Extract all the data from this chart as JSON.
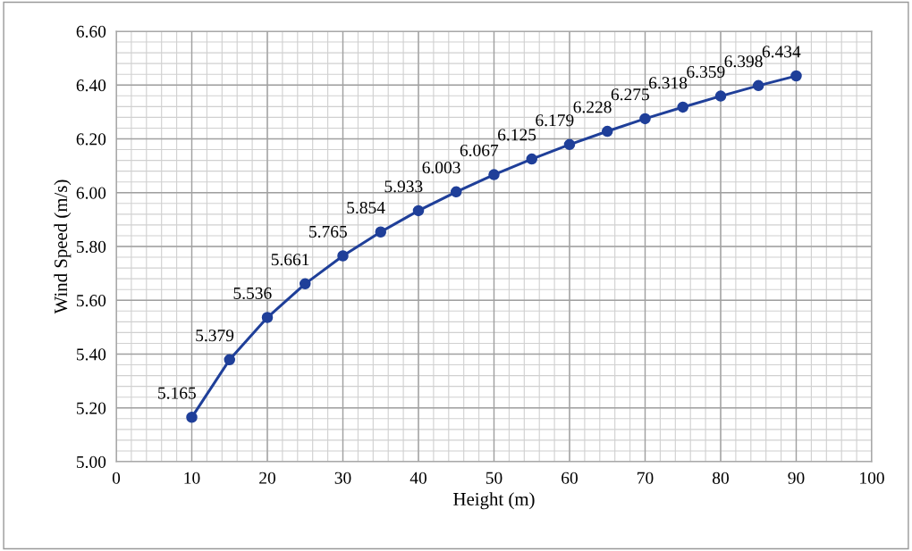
{
  "chart_data": {
    "type": "line",
    "xlabel": "Height (m)",
    "ylabel": "Wind Speed (m/s)",
    "x": [
      10,
      15,
      20,
      25,
      30,
      35,
      40,
      45,
      50,
      55,
      60,
      65,
      70,
      75,
      80,
      85,
      90
    ],
    "series": [
      {
        "color": "#1f3f99",
        "values": [
          5.165,
          5.379,
          5.536,
          5.661,
          5.765,
          5.854,
          5.933,
          6.003,
          6.067,
          6.125,
          6.179,
          6.228,
          6.275,
          6.318,
          6.359,
          6.398,
          6.434
        ]
      }
    ],
    "xlim": [
      0,
      100
    ],
    "xticks": [
      0,
      10,
      20,
      30,
      40,
      50,
      60,
      70,
      80,
      90,
      100
    ],
    "ylim": [
      5.0,
      6.6
    ],
    "yticks": [
      {
        "value": 5.0,
        "label": "5.00"
      },
      {
        "value": 5.2,
        "label": "5.20"
      },
      {
        "value": 5.4,
        "label": "5.40"
      },
      {
        "value": 5.6,
        "label": "5.60"
      },
      {
        "value": 5.8,
        "label": "5.80"
      },
      {
        "value": 6.0,
        "label": "6.00"
      },
      {
        "value": 6.2,
        "label": "6.20"
      },
      {
        "value": 6.4,
        "label": "6.40"
      },
      {
        "value": 6.6,
        "label": "6.60"
      }
    ],
    "grid": true,
    "marker": "circle",
    "line_style": "solid",
    "data_labels": true
  }
}
